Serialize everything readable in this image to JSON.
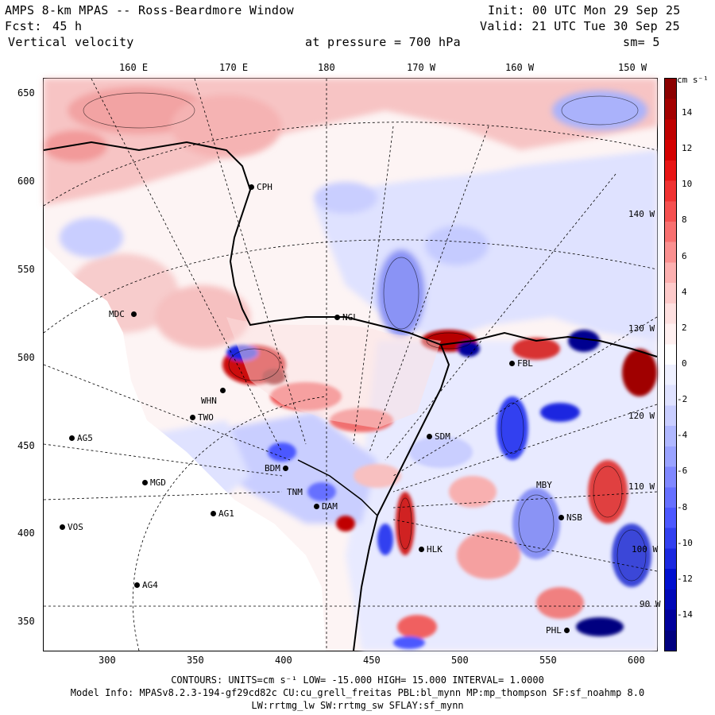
{
  "header": {
    "title": "AMPS 8-km MPAS -- Ross-Beardmore Window",
    "fcst_label": "Fcst:",
    "fcst_value": "45 h",
    "variable": "Vertical velocity",
    "init": "Init: 00 UTC Mon 29 Sep 25",
    "valid": "Valid: 21 UTC Tue 30 Sep 25",
    "pressure": "at pressure =  700 hPa",
    "smooth": "sm= 5"
  },
  "axes": {
    "top_ticks": [
      "160 E",
      "170 E",
      "180",
      "170 W",
      "160 W",
      "150 W"
    ],
    "left_ticks": [
      "650",
      "600",
      "550",
      "500",
      "450",
      "400",
      "350"
    ],
    "bottom_ticks": [
      "300",
      "350",
      "400",
      "450",
      "500",
      "550",
      "600"
    ],
    "inner_lon_labels": [
      "140 W",
      "130 W",
      "120 W",
      "110 W",
      "100 W",
      "90 W"
    ]
  },
  "colorbar": {
    "units": "cm s⁻¹",
    "ticks": [
      "14",
      "12",
      "10",
      "8",
      "6",
      "4",
      "2",
      "0",
      "-2",
      "-4",
      "-6",
      "-8",
      "-10",
      "-12",
      "-14"
    ],
    "colors": [
      "#8b0000",
      "#a30000",
      "#bf0000",
      "#d40000",
      "#e81515",
      "#f03232",
      "#f55050",
      "#f87070",
      "#fa9090",
      "#fcb0b0",
      "#fdcaca",
      "#fee0e0",
      "#fff0f0",
      "#ffffff",
      "#eef0ff",
      "#dfe2ff",
      "#c9ceff",
      "#b0b8ff",
      "#9aa3ff",
      "#8088ff",
      "#6670ff",
      "#4c58ff",
      "#3240f0",
      "#1a28e0",
      "#0010d0",
      "#0008b8",
      "#00009c",
      "#000080"
    ]
  },
  "stations": [
    {
      "id": "CPH"
    },
    {
      "id": "MDC"
    },
    {
      "id": "NGL"
    },
    {
      "id": "WHN"
    },
    {
      "id": "TWO"
    },
    {
      "id": "AG5"
    },
    {
      "id": "SDM"
    },
    {
      "id": "MGD"
    },
    {
      "id": "AG1"
    },
    {
      "id": "VOS"
    },
    {
      "id": "AG4"
    },
    {
      "id": "BDM"
    },
    {
      "id": "TNM"
    },
    {
      "id": "DAM"
    },
    {
      "id": "HLK"
    },
    {
      "id": "FBL"
    },
    {
      "id": "MBY"
    },
    {
      "id": "NSB"
    },
    {
      "id": "PHL"
    }
  ],
  "footer": {
    "contours_line": "CONTOURS:  UNITS=cm s⁻¹  LOW= -15.000      HIGH=  15.000      INTERVAL=   1.0000",
    "model_line": "Model Info: MPASv8.2.3-194-gf29cd82c CU:cu_grell_freitas PBL:bl_mynn MP:mp_thompson SF:sf_noahmp 8.0",
    "physics_line": "LW:rrtmg_lw SW:rrtmg_sw SFLAY:sf_mynn"
  },
  "theme": {
    "warm": "#e35050",
    "cool": "#3a46d8",
    "pale_red": "#fbd6d6",
    "pale_blue": "#dfe2ff"
  }
}
